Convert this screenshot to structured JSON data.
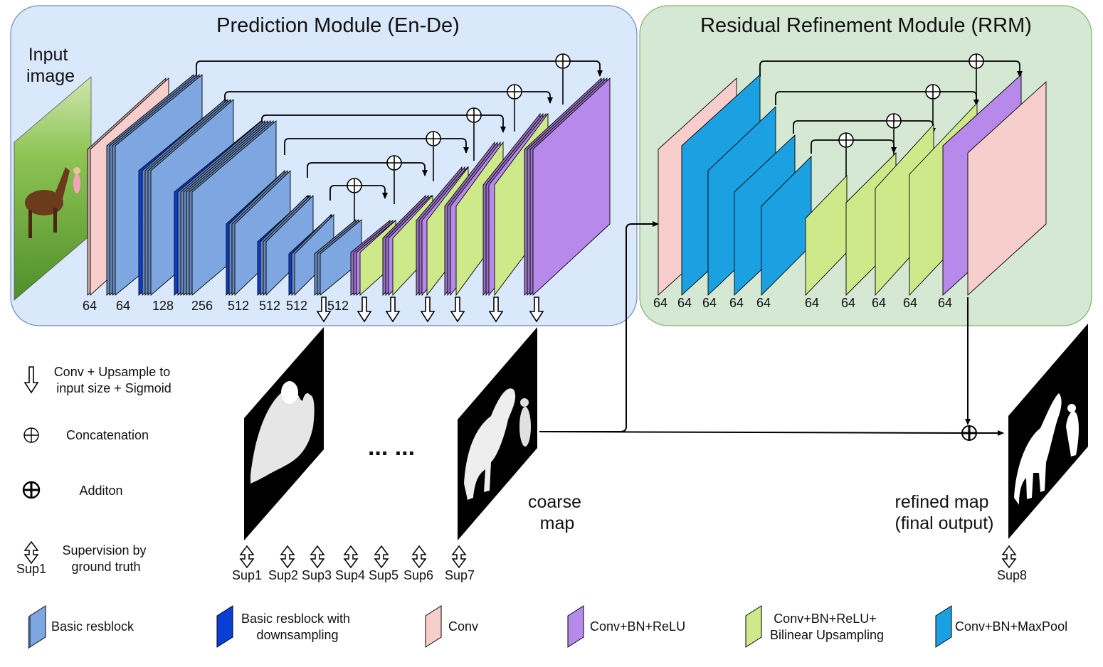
{
  "modules": {
    "prediction_title": "Prediction Module (En-De)",
    "refinement_title": "Residual Refinement Module (RRM)"
  },
  "input": {
    "line1": "Input",
    "line2": "image"
  },
  "channels": {
    "prediction": [
      "64",
      "64",
      "128",
      "256",
      "512",
      "512",
      "512",
      "512"
    ],
    "refinement": [
      "64",
      "64",
      "64",
      "64",
      "64",
      "64",
      "64",
      "64",
      "64",
      "64"
    ]
  },
  "maps": {
    "ellipsis": "... ...",
    "coarse": [
      "coarse",
      "map"
    ],
    "refined": [
      "refined map",
      "(final output)"
    ]
  },
  "supervision": [
    "Sup1",
    "Sup2",
    "Sup3",
    "Sup4",
    "Sup5",
    "Sup6",
    "Sup7",
    "Sup8"
  ],
  "side_legend": {
    "upsample": [
      "Conv + Upsample to",
      "input size + Sigmoid"
    ],
    "concat": "Concatenation",
    "addition": "Additon",
    "supervision": [
      "Supervision by",
      "ground truth"
    ],
    "sup_example": "Sup1"
  },
  "bottom_legend": [
    {
      "lines": [
        "Basic resblock"
      ],
      "color": "#7ea6e0"
    },
    {
      "lines": [
        "Basic resblock with",
        "downsampling"
      ],
      "color": "#0a3fd6"
    },
    {
      "lines": [
        "Conv"
      ],
      "color": "#f8cecc"
    },
    {
      "lines": [
        "Conv+BN+ReLU"
      ],
      "color": "#b689ea"
    },
    {
      "lines": [
        "Conv+BN+ReLU+",
        "Bilinear Upsampling"
      ],
      "color": "#cde98a"
    },
    {
      "lines": [
        "Conv+BN+MaxPool"
      ],
      "color": "#1ba1e2"
    }
  ],
  "colors": {
    "prediction_bg": "#dae8fc",
    "refinement_bg": "#d5e8d4",
    "resblock": "#7ea6e0",
    "resblock_down": "#0a3fd6",
    "conv": "#f8cecc",
    "conv_bn_relu": "#b689ea",
    "upsampling": "#cde98a",
    "maxpool": "#1ba1e2"
  }
}
